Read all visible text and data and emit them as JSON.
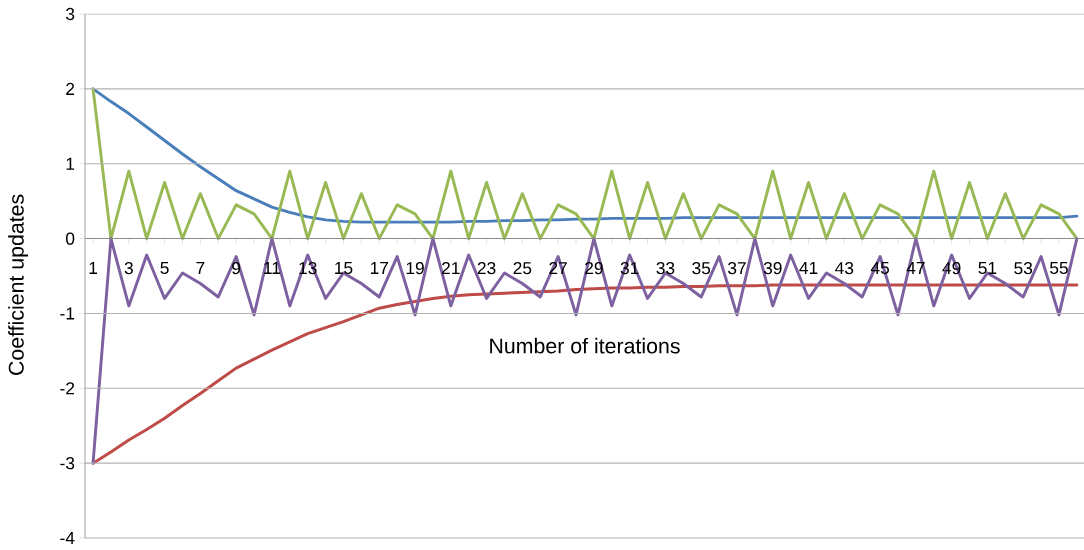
{
  "chart_data": {
    "type": "line",
    "xlabel": "Number of iterations",
    "ylabel": "Coefficient updates",
    "categories": [
      "1",
      null,
      "3",
      null,
      "5",
      null,
      "7",
      null,
      "9",
      null,
      "11",
      null,
      "13",
      null,
      "15",
      null,
      "17",
      null,
      "19",
      null,
      "21",
      null,
      "23",
      null,
      "25",
      null,
      "27",
      null,
      "29",
      null,
      "31",
      null,
      "33",
      null,
      "35",
      null,
      "37",
      null,
      "39",
      null,
      "41",
      null,
      "43",
      null,
      "45",
      null,
      "47",
      null,
      "49",
      null,
      "51",
      null,
      "53",
      null,
      "55",
      null
    ],
    "series": [
      {
        "color": "#4a7ebb",
        "values": [
          2,
          1.83,
          1.67,
          1.49,
          1.31,
          1.13,
          0.96,
          0.8,
          0.64,
          0.53,
          0.42,
          0.35,
          0.29,
          0.25,
          0.23,
          0.22,
          0.22,
          0.22,
          0.22,
          0.22,
          0.22,
          0.23,
          0.23,
          0.24,
          0.24,
          0.25,
          0.25,
          0.26,
          0.26,
          0.27,
          0.27,
          0.27,
          0.27,
          0.28,
          0.28,
          0.28,
          0.28,
          0.28,
          0.28,
          0.28,
          0.28,
          0.28,
          0.28,
          0.28,
          0.28,
          0.28,
          0.28,
          0.28,
          0.28,
          0.28,
          0.28,
          0.28,
          0.28,
          0.28,
          0.28,
          0.3
        ]
      },
      {
        "color": "#be4b48",
        "values": [
          -3,
          -2.85,
          -2.69,
          -2.55,
          -2.4,
          -2.23,
          -2.07,
          -1.9,
          -1.73,
          -1.61,
          -1.49,
          -1.38,
          -1.27,
          -1.19,
          -1.11,
          -1.02,
          -0.93,
          -0.88,
          -0.84,
          -0.8,
          -0.77,
          -0.75,
          -0.74,
          -0.73,
          -0.72,
          -0.71,
          -0.7,
          -0.68,
          -0.67,
          -0.66,
          -0.66,
          -0.65,
          -0.65,
          -0.64,
          -0.64,
          -0.63,
          -0.63,
          -0.63,
          -0.62,
          -0.62,
          -0.62,
          -0.62,
          -0.62,
          -0.62,
          -0.62,
          -0.62,
          -0.62,
          -0.62,
          -0.62,
          -0.62,
          -0.62,
          -0.62,
          -0.62,
          -0.62,
          -0.62,
          -0.62
        ]
      },
      {
        "color": "#98b954",
        "values": [
          2,
          0,
          0.9,
          0,
          0.75,
          0,
          0.6,
          0,
          0.45,
          0.33,
          0,
          0.9,
          0,
          0.75,
          0,
          0.6,
          0,
          0.45,
          0.33,
          0,
          0.9,
          0,
          0.75,
          0,
          0.6,
          0,
          0.45,
          0.33,
          0,
          0.9,
          0,
          0.75,
          0,
          0.6,
          0,
          0.45,
          0.33,
          0,
          0.9,
          0,
          0.75,
          0,
          0.6,
          0,
          0.45,
          0.33,
          0,
          0.9,
          0,
          0.75,
          0,
          0.6,
          0,
          0.45,
          0.33,
          0
        ]
      },
      {
        "color": "#7d60a0",
        "values": [
          -3,
          0,
          -0.9,
          -0.22,
          -0.8,
          -0.46,
          -0.6,
          -0.78,
          -0.24,
          -1.02,
          0,
          -0.9,
          -0.22,
          -0.8,
          -0.46,
          -0.6,
          -0.78,
          -0.24,
          -1.02,
          0,
          -0.9,
          -0.22,
          -0.8,
          -0.46,
          -0.6,
          -0.78,
          -0.24,
          -1.02,
          0,
          -0.9,
          -0.22,
          -0.8,
          -0.46,
          -0.6,
          -0.78,
          -0.24,
          -1.02,
          0,
          -0.9,
          -0.22,
          -0.8,
          -0.46,
          -0.6,
          -0.78,
          -0.24,
          -1.02,
          0,
          -0.9,
          -0.22,
          -0.8,
          -0.46,
          -0.6,
          -0.78,
          -0.24,
          -1.02,
          0
        ]
      }
    ],
    "ylim": [
      -4,
      3
    ],
    "yticks": [
      -4,
      -3,
      -2,
      -1,
      0,
      1,
      2,
      3
    ],
    "grid": "y"
  }
}
